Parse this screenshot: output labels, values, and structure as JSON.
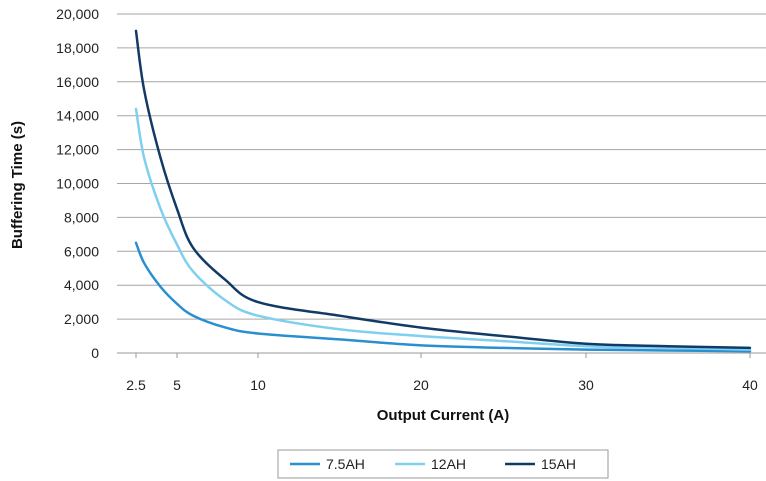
{
  "chart_data": {
    "type": "line",
    "xlabel": "Output Current (A)",
    "ylabel": "Buffering Time (s)",
    "xlim": [
      0,
      40
    ],
    "ylim": [
      0,
      20000
    ],
    "x_ticks": [
      2.5,
      5,
      10,
      20,
      30,
      40
    ],
    "x_tick_labels": [
      "2.5",
      "5",
      "10",
      "20",
      "30",
      "40"
    ],
    "y_ticks": [
      0,
      2000,
      4000,
      6000,
      8000,
      10000,
      12000,
      14000,
      16000,
      18000,
      20000
    ],
    "y_tick_labels": [
      "0",
      "2,000",
      "4,000",
      "6,000",
      "8,000",
      "10,000",
      "12,000",
      "14,000",
      "16,000",
      "18,000",
      "20,000"
    ],
    "grid": "horizontal",
    "legend_position": "bottom",
    "series": [
      {
        "name": "7.5AH",
        "color": "#2a8fd0",
        "x": [
          2.5,
          3,
          4,
          5,
          6,
          8,
          10,
          15,
          20,
          25,
          30,
          35,
          40
        ],
        "y": [
          6500,
          5300,
          3900,
          2900,
          2200,
          1500,
          1150,
          800,
          450,
          300,
          200,
          150,
          100
        ]
      },
      {
        "name": "12AH",
        "color": "#7fd0ef",
        "x": [
          2.5,
          3,
          4,
          5,
          6,
          8,
          10,
          15,
          20,
          25,
          30,
          35,
          40
        ],
        "y": [
          14400,
          11500,
          8500,
          6400,
          4800,
          3100,
          2200,
          1400,
          1000,
          700,
          400,
          300,
          200
        ]
      },
      {
        "name": "15AH",
        "color": "#123a66",
        "x": [
          2.5,
          3,
          4,
          5,
          6,
          8,
          10,
          15,
          20,
          25,
          30,
          35,
          40
        ],
        "y": [
          19000,
          15500,
          11500,
          8500,
          6200,
          4300,
          3000,
          2200,
          1500,
          1000,
          550,
          400,
          300
        ]
      }
    ]
  }
}
